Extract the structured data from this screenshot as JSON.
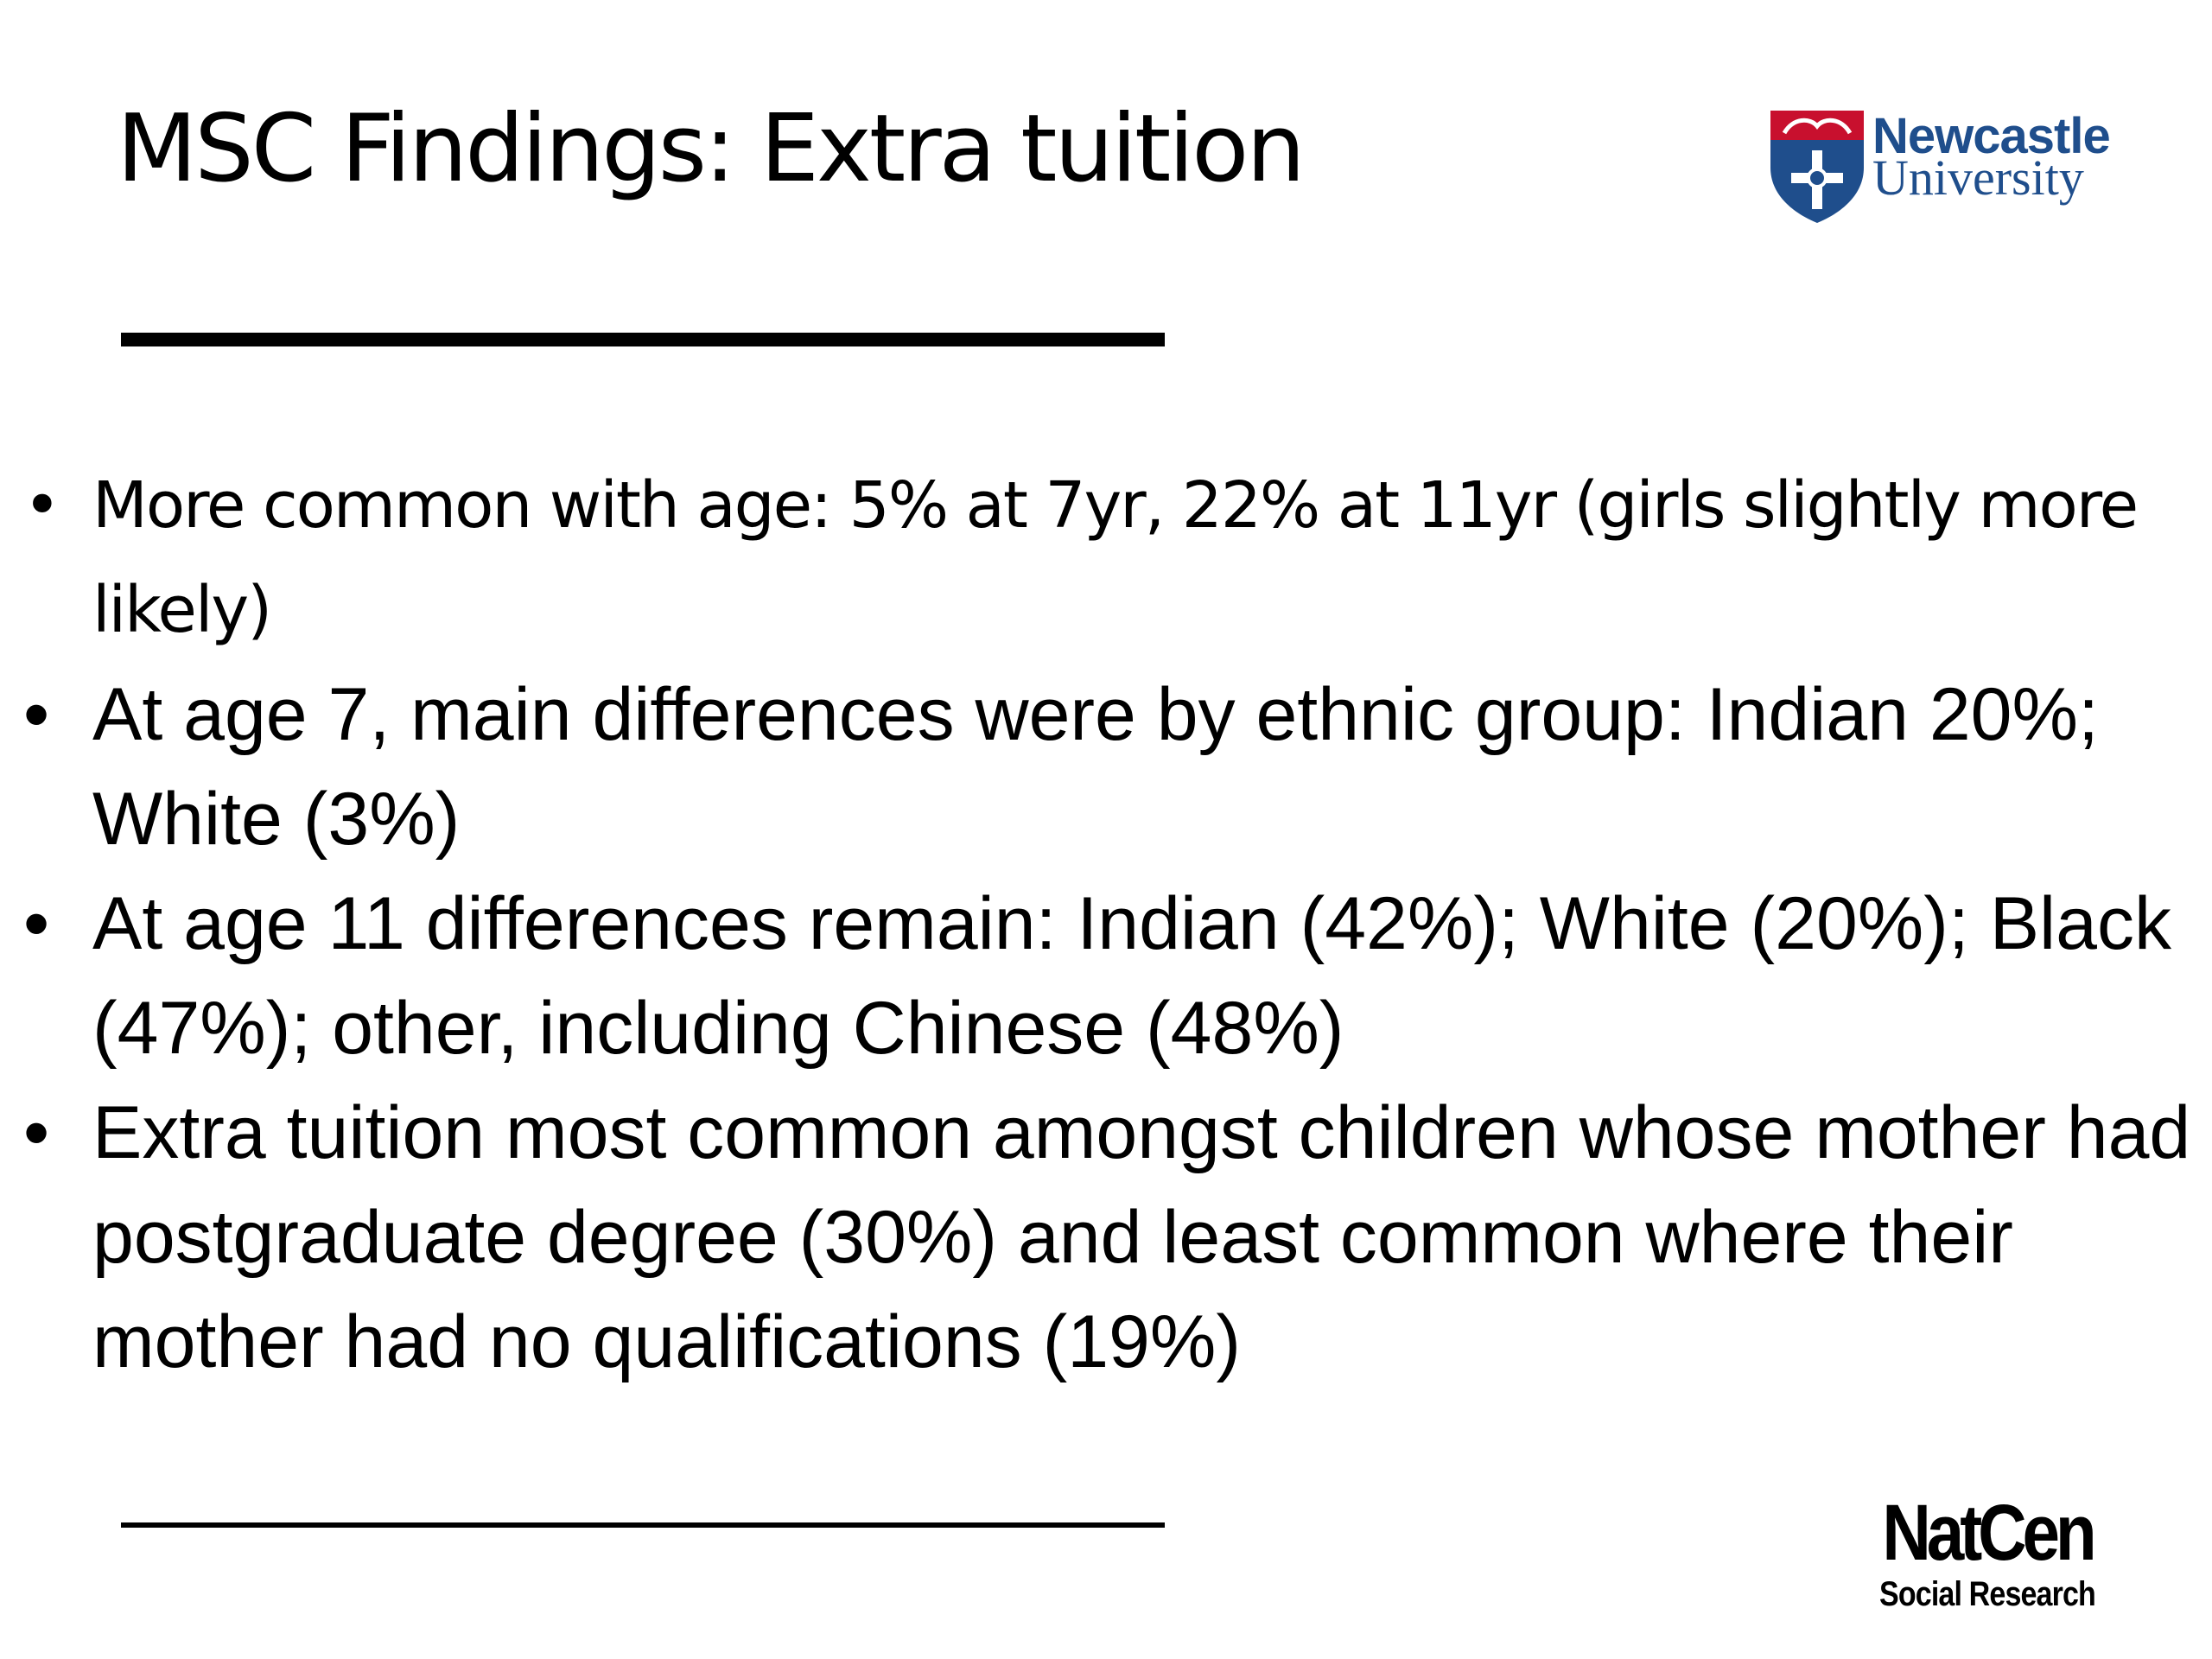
{
  "header": {
    "title": "MSC Findings: Extra tuition",
    "logo_top": {
      "line1": "Newcastle",
      "line2": "University"
    },
    "logo_bottom": {
      "line1": "NatCen",
      "line2": "Social Research"
    }
  },
  "bullets": [
    "More common with age: 5% at 7yr, 22% at 11yr (girls slightly more likely)",
    "At age 7, main differences were by ethnic group: Indian 20%; White (3%)",
    "At age 11 differences remain: Indian (42%); White (20%); Black (47%); other, including Chinese (48%)",
    "Extra tuition most common amongst children whose mother had postgraduate degree (30%) and least common where their mother had no qualifications (19%)"
  ]
}
